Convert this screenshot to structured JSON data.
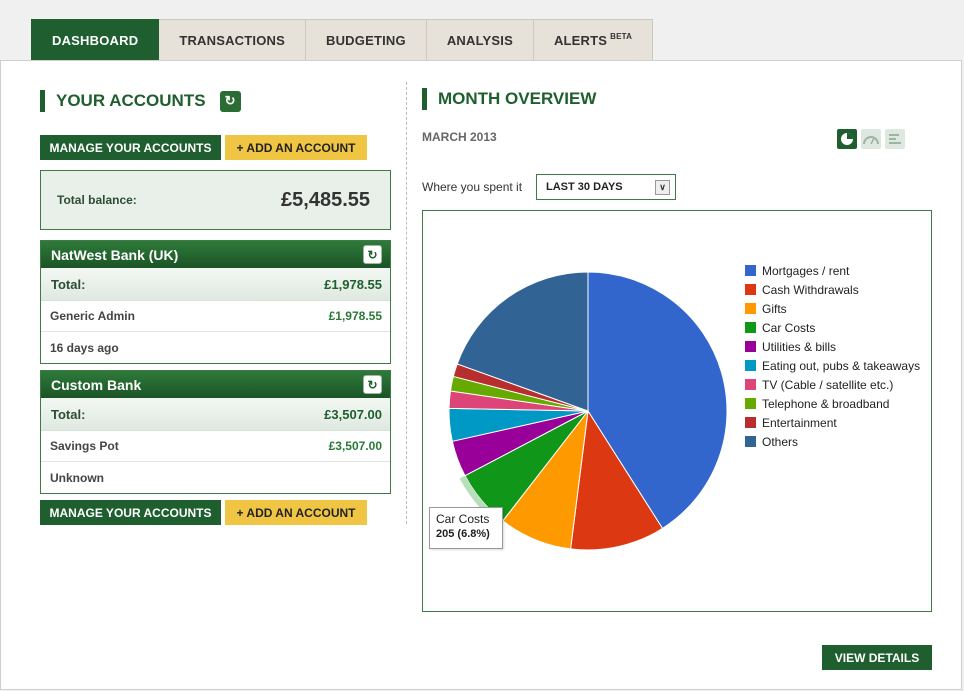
{
  "tabs": [
    {
      "label": "DASHBOARD",
      "active": true
    },
    {
      "label": "TRANSACTIONS",
      "active": false
    },
    {
      "label": "BUDGETING",
      "active": false
    },
    {
      "label": "ANALYSIS",
      "active": false
    },
    {
      "label": "ALERTS",
      "badge": "BETA",
      "active": false
    }
  ],
  "accounts": {
    "title": "YOUR ACCOUNTS",
    "manage_label": "MANAGE YOUR ACCOUNTS",
    "add_label": "+ ADD AN ACCOUNT",
    "total_balance_label": "Total balance:",
    "total_balance_value": "£5,485.55",
    "banks": [
      {
        "name": "NatWest Bank (UK)",
        "total_label": "Total:",
        "total_value": "£1,978.55",
        "account_name": "Generic Admin",
        "account_value": "£1,978.55",
        "updated": "16 days ago"
      },
      {
        "name": "Custom Bank",
        "total_label": "Total:",
        "total_value": "£3,507.00",
        "account_name": "Savings Pot",
        "account_value": "£3,507.00",
        "updated": "Unknown"
      }
    ]
  },
  "overview": {
    "title": "MONTH OVERVIEW",
    "month": "MARCH 2013",
    "where_label": "Where you spent it",
    "period_selected": "LAST 30 DAYS",
    "view_details_label": "VIEW DETAILS",
    "view_icons": [
      "pie-chart-icon",
      "gauge-icon",
      "bar-list-icon"
    ]
  },
  "chart_data": {
    "type": "pie",
    "categories": [
      "Mortgages / rent",
      "Cash Withdrawals",
      "Gifts",
      "Car Costs",
      "Utilities & bills",
      "Eating out, pubs & takeaways",
      "TV (Cable / satellite etc.)",
      "Telephone & broadband",
      "Entertainment",
      "Others"
    ],
    "values": [
      41.0,
      11.0,
      8.5,
      6.8,
      4.2,
      3.8,
      2.0,
      1.7,
      1.5,
      19.5
    ],
    "colors": [
      "#3366cc",
      "#dc3912",
      "#ff9900",
      "#109618",
      "#990099",
      "#0099c6",
      "#dd4477",
      "#66aa00",
      "#b82e2e",
      "#316395"
    ],
    "legend_position": "right",
    "tooltip": {
      "label": "Car Costs",
      "value": "205 (6.8%)"
    }
  }
}
